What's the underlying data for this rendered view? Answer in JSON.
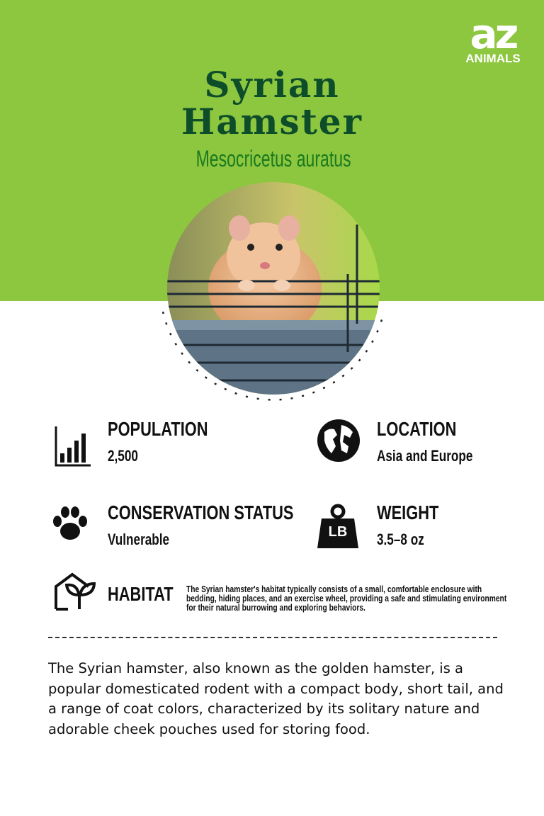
{
  "brand": {
    "logo_mark": "az",
    "logo_word": "ANIMALS"
  },
  "header": {
    "title_line1": "Syrian",
    "title_line2": "Hamster",
    "scientific_name": "Mesocricetus auratus"
  },
  "colors": {
    "top_background": "#8dc63f",
    "title": "#0d4d2a",
    "scientific_name": "#1a7a1f"
  },
  "facts": {
    "population": {
      "label": "POPULATION",
      "value": "2,500",
      "icon": "bar-chart-icon"
    },
    "location": {
      "label": "LOCATION",
      "value": "Asia and Europe",
      "icon": "globe-icon"
    },
    "conservation": {
      "label": "CONSERVATION STATUS",
      "value": "Vulnerable",
      "icon": "paw-icon"
    },
    "weight": {
      "label": "WEIGHT",
      "value": "3.5–8 oz",
      "icon": "weight-lb-icon",
      "icon_text": "LB"
    },
    "habitat": {
      "label": "HABITAT",
      "icon": "house-plant-icon",
      "description": "The Syrian hamster's habitat typically consists of a small, comfortable enclosure with bedding, hiding places, and an exercise wheel, providing a safe and stimulating environment for their natural burrowing and exploring behaviors."
    }
  },
  "description": "The Syrian hamster, also known as the golden hamster, is a popular domesticated rodent with a compact body, short tail, and a range of coat colors, characterized by its solitary nature and adorable cheek pouches used for storing food."
}
